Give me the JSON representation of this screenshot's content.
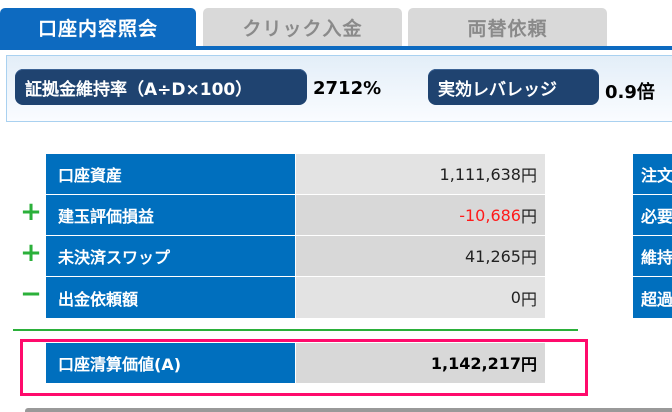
{
  "tabs": [
    {
      "label": "口座内容照会",
      "active": true
    },
    {
      "label": "クリック入金",
      "active": false
    },
    {
      "label": "両替依頼",
      "active": false
    }
  ],
  "info": {
    "margin_ratio_label": "証拠金維持率（A÷D×100）",
    "margin_ratio_value": "2712%",
    "leverage_label": "実効レバレッジ",
    "leverage_value": "0.9倍"
  },
  "table": {
    "rows": [
      {
        "sign": "",
        "label": "口座資産",
        "value": "1,111,638",
        "unit": "円"
      },
      {
        "sign": "+",
        "label": "建玉評価損益",
        "value": "-10,686",
        "unit": "円",
        "value_color": "#ff1a1a"
      },
      {
        "sign": "+",
        "label": "未決済スワップ",
        "value": "41,265",
        "unit": "円"
      },
      {
        "sign": "−",
        "label": "出金依頼額",
        "value": "0",
        "unit": "円"
      }
    ],
    "total": {
      "label": "口座清算価値(A)",
      "value": "1,142,217",
      "unit": "円"
    }
  },
  "right_table": {
    "rows": [
      "注文",
      "必要",
      "維持",
      "超過"
    ]
  },
  "colors": {
    "accent": "#006fbe",
    "highlight_border": "#ff0a6c",
    "plus_minus": "#2bb03a",
    "negative": "#ff1a1a"
  }
}
